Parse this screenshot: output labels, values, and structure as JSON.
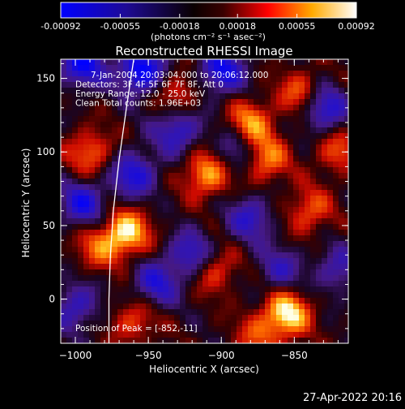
{
  "app": {
    "footer_timestamp": "27-Apr-2022 20:16"
  },
  "colorbar": {
    "tick_labels": [
      "-0.00092",
      "-0.00055",
      "-0.00018",
      "0.00018",
      "0.00055",
      "0.00092"
    ],
    "units_label": "(photons cm⁻² s⁻¹ asec⁻²)",
    "range": [
      -0.00092,
      0.00092
    ],
    "colors": [
      "#0000ff",
      "#1a0a8c",
      "#000000",
      "#ff0000",
      "#ffaa00",
      "#ffffff"
    ]
  },
  "chart_data": {
    "type": "heatmap",
    "title": "Reconstructed RHESSI Image",
    "xlabel": "Heliocentric X (arcsec)",
    "ylabel": "Heliocentric Y (arcsec)",
    "xlim": [
      -1010,
      -813
    ],
    "ylim": [
      -30,
      163
    ],
    "x_ticks": [
      -1000,
      -950,
      -900,
      -850
    ],
    "x_tick_labels": [
      "−1000",
      "−950",
      "−900",
      "−850"
    ],
    "y_ticks": [
      0,
      50,
      100,
      150
    ],
    "y_tick_labels": [
      "0",
      "50",
      "100",
      "150"
    ],
    "annotations": [
      "7-Jan-2004 20:03:04.000 to 20:06:12.000",
      "Detectors: 3F 4F 5F 6F 7F 8F, Att 0",
      "Energy Range: 12.0 - 25.0 keV",
      "Clean      Total counts: 1.96E+03"
    ],
    "peak_label": "Position of Peak = [-852,-11]",
    "peak": [
      -852,
      -11
    ],
    "grid": false,
    "legend": "none",
    "hot_spots": [
      {
        "x": -855,
        "y": -10,
        "v": 1.0
      },
      {
        "x": -965,
        "y": 45,
        "v": 0.95
      },
      {
        "x": -910,
        "y": 85,
        "v": 0.8
      },
      {
        "x": -880,
        "y": 120,
        "v": 0.7
      },
      {
        "x": -870,
        "y": 95,
        "v": 0.7
      },
      {
        "x": -845,
        "y": 140,
        "v": 0.6
      },
      {
        "x": -990,
        "y": 100,
        "v": 0.6
      },
      {
        "x": -905,
        "y": 20,
        "v": 0.55
      },
      {
        "x": -840,
        "y": 60,
        "v": 0.55
      },
      {
        "x": -960,
        "y": -15,
        "v": 0.5
      },
      {
        "x": -930,
        "y": 140,
        "v": 0.5
      },
      {
        "x": -985,
        "y": 35,
        "v": 0.5
      },
      {
        "x": -820,
        "y": 100,
        "v": 0.5
      },
      {
        "x": -875,
        "y": -25,
        "v": 0.45
      }
    ],
    "cold_spots": [
      {
        "x": -955,
        "y": 155,
        "v": -1.0
      },
      {
        "x": -995,
        "y": 160,
        "v": -0.9
      },
      {
        "x": -900,
        "y": 155,
        "v": -0.85
      },
      {
        "x": -830,
        "y": 130,
        "v": -0.8
      },
      {
        "x": -960,
        "y": 85,
        "v": -0.75
      },
      {
        "x": -930,
        "y": 115,
        "v": -0.7
      },
      {
        "x": -995,
        "y": 65,
        "v": -0.75
      },
      {
        "x": -920,
        "y": 30,
        "v": -0.7
      },
      {
        "x": -945,
        "y": 10,
        "v": -0.65
      },
      {
        "x": -880,
        "y": 55,
        "v": -0.6
      },
      {
        "x": -1000,
        "y": -5,
        "v": -0.6
      },
      {
        "x": -860,
        "y": 20,
        "v": -0.5
      },
      {
        "x": -820,
        "y": 20,
        "v": -0.5
      },
      {
        "x": -890,
        "y": 100,
        "v": -0.5
      }
    ],
    "limb_curve": [
      [
        -960,
        163
      ],
      [
        -965,
        130
      ],
      [
        -970,
        95
      ],
      [
        -974,
        60
      ],
      [
        -976,
        30
      ],
      [
        -977,
        0
      ],
      [
        -977,
        -30
      ]
    ]
  }
}
